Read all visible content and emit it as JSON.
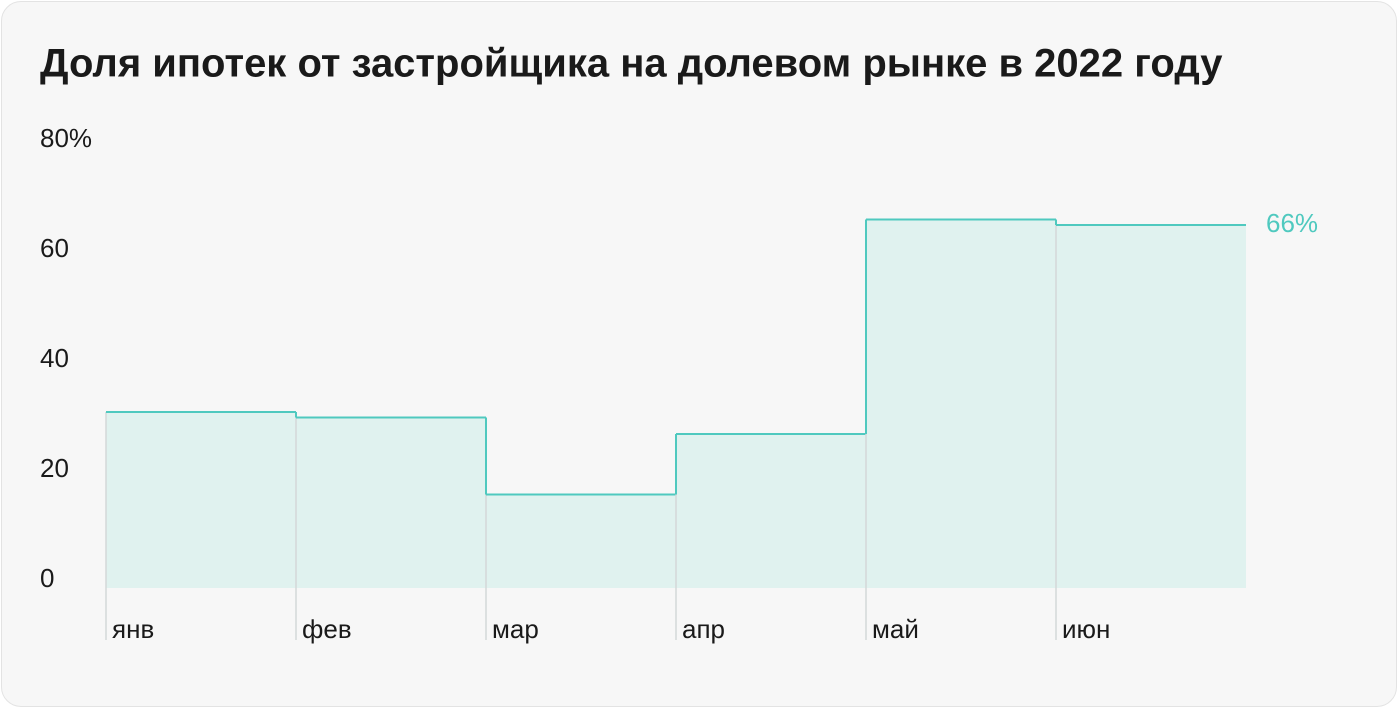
{
  "chart_data": {
    "type": "step-area",
    "title": "Доля ипотек от застройщика на долевом рынке в 2022 году",
    "categories": [
      "янв",
      "фев",
      "мар",
      "апр",
      "май",
      "июн"
    ],
    "values": [
      32,
      31,
      17,
      28,
      67,
      66
    ],
    "value_labels": [
      null,
      null,
      null,
      null,
      null,
      "66%"
    ],
    "color": "#4fc9bf",
    "ylim": [
      0,
      80
    ],
    "yticks": [
      0,
      20,
      40,
      60,
      {
        "value": 80,
        "label": "80%"
      }
    ]
  }
}
